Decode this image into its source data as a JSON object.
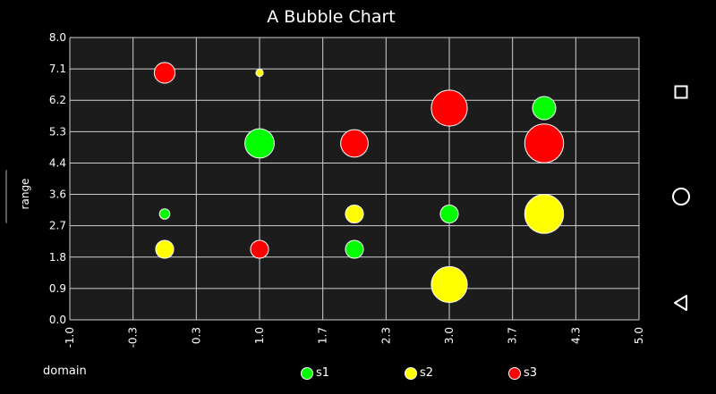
{
  "chart_data": {
    "type": "scatter",
    "title": "A Bubble Chart",
    "xlabel": "domain",
    "ylabel": "range",
    "xlim": [
      -1.0,
      5.0
    ],
    "ylim": [
      0.0,
      8.0
    ],
    "xticks": [
      "-1.0",
      "-0.3",
      "0.3",
      "1.0",
      "1.7",
      "2.3",
      "3.0",
      "3.7",
      "4.3",
      "5.0"
    ],
    "yticks": [
      "0.0",
      "0.9",
      "1.8",
      "2.7",
      "3.6",
      "4.4",
      "5.3",
      "6.2",
      "7.1",
      "8.0"
    ],
    "grid": true,
    "legend_position": "bottom",
    "series": [
      {
        "name": "s1",
        "color": "#00ff00",
        "points": [
          {
            "x": 0.0,
            "y": 3.0,
            "size": 1
          },
          {
            "x": 1.0,
            "y": 5.0,
            "size": 8
          },
          {
            "x": 2.0,
            "y": 2.0,
            "size": 3
          },
          {
            "x": 3.0,
            "y": 3.0,
            "size": 3
          },
          {
            "x": 4.0,
            "y": 6.0,
            "size": 5
          }
        ]
      },
      {
        "name": "s2",
        "color": "#ffff00",
        "points": [
          {
            "x": 0.0,
            "y": 2.0,
            "size": 3
          },
          {
            "x": 1.0,
            "y": 7.0,
            "size": 0.5
          },
          {
            "x": 2.0,
            "y": 3.0,
            "size": 3
          },
          {
            "x": 3.0,
            "y": 1.0,
            "size": 12
          },
          {
            "x": 4.0,
            "y": 3.0,
            "size": 14
          }
        ]
      },
      {
        "name": "s3",
        "color": "#ff0000",
        "points": [
          {
            "x": 0.0,
            "y": 7.0,
            "size": 4
          },
          {
            "x": 1.0,
            "y": 2.0,
            "size": 3
          },
          {
            "x": 2.0,
            "y": 5.0,
            "size": 7
          },
          {
            "x": 3.0,
            "y": 6.0,
            "size": 12
          },
          {
            "x": 4.0,
            "y": 5.0,
            "size": 14
          }
        ]
      }
    ]
  },
  "navbar": {
    "recents": "square-icon",
    "home": "circle-icon",
    "back": "triangle-back-icon"
  }
}
